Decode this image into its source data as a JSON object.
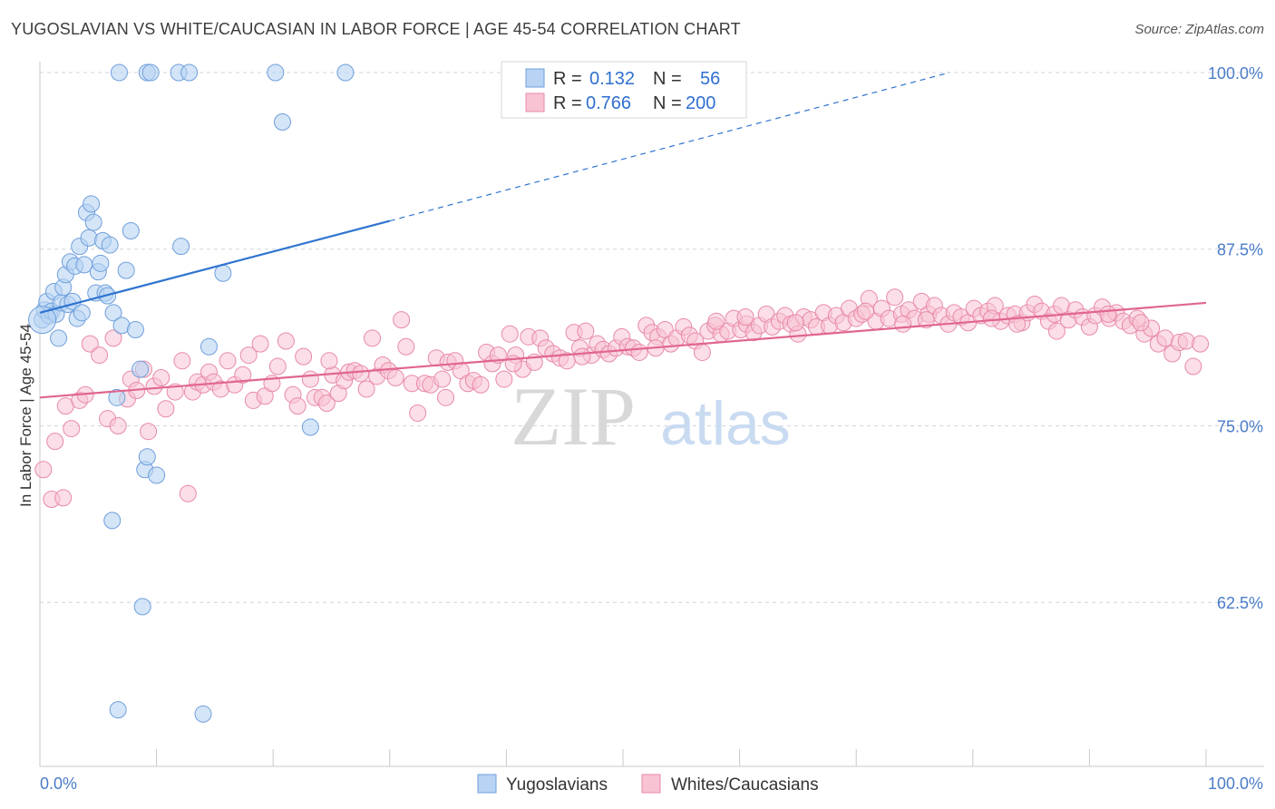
{
  "title": "YUGOSLAVIAN VS WHITE/CAUCASIAN IN LABOR FORCE | AGE 45-54 CORRELATION CHART",
  "source": "Source: ZipAtlas.com",
  "watermark": {
    "zip": "ZIP",
    "atlas": "atlas"
  },
  "colors": {
    "blue_fill": "#b8d3f3",
    "blue_stroke": "#6f9fdc",
    "blue_line": "#2f74d0",
    "pink_fill": "#f8c3d3",
    "pink_stroke": "#e88aa8",
    "pink_line": "#e0668f",
    "tick_label": "#4a7cc9",
    "grid": "#cfd6e0"
  },
  "legend": {
    "rows": [
      {
        "r_label": "R = ",
        "r_value": "0.132",
        "n_label": "N = ",
        "n_value": "56"
      },
      {
        "r_label": "R = ",
        "r_value": "0.766",
        "n_label": "N = ",
        "n_value": "200"
      }
    ]
  },
  "bottom_legend": [
    "Yugoslavians",
    "Whites/Caucasians"
  ],
  "chart_data": {
    "type": "scatter",
    "title": "YUGOSLAVIAN VS WHITE/CAUCASIAN IN LABOR FORCE | AGE 45-54 CORRELATION CHART",
    "xlabel": "",
    "ylabel": "In Labor Force | Age 45-54",
    "xlim": [
      0,
      100
    ],
    "ylim": [
      50,
      101
    ],
    "x_tick_labels": [
      "0.0%",
      "100.0%"
    ],
    "y_ticks": [
      62.5,
      75.0,
      87.5,
      100.0
    ],
    "y_tick_labels": [
      "62.5%",
      "75.0%",
      "87.5%",
      "100.0%"
    ],
    "grid": true,
    "legend_position": "top-center",
    "series": [
      {
        "name": "Yugoslavians",
        "R": 0.132,
        "N": 56,
        "trend": {
          "x0": 0,
          "y0": 83.0,
          "x1": 30,
          "y1": 89.5,
          "dashed_to_x": 78,
          "dashed_to_y": 100.0
        },
        "points": [
          [
            0.2,
            82.5
          ],
          [
            0.4,
            83.2
          ],
          [
            0.6,
            83.8
          ],
          [
            0.8,
            82.8
          ],
          [
            1.0,
            83.1
          ],
          [
            1.2,
            84.5
          ],
          [
            1.4,
            82.9
          ],
          [
            1.6,
            81.2
          ],
          [
            1.8,
            83.7
          ],
          [
            2.0,
            84.8
          ],
          [
            2.2,
            85.7
          ],
          [
            2.4,
            83.6
          ],
          [
            2.6,
            86.6
          ],
          [
            2.8,
            83.8
          ],
          [
            3.0,
            86.3
          ],
          [
            3.2,
            82.6
          ],
          [
            3.4,
            87.7
          ],
          [
            3.6,
            83.0
          ],
          [
            3.8,
            86.4
          ],
          [
            4.0,
            90.1
          ],
          [
            4.2,
            88.3
          ],
          [
            4.4,
            90.7
          ],
          [
            4.6,
            89.4
          ],
          [
            4.8,
            84.4
          ],
          [
            5.0,
            85.9
          ],
          [
            5.2,
            86.5
          ],
          [
            5.4,
            88.1
          ],
          [
            5.6,
            84.4
          ],
          [
            5.8,
            84.2
          ],
          [
            6.0,
            87.8
          ],
          [
            6.3,
            83.0
          ],
          [
            6.6,
            77.0
          ],
          [
            7.0,
            82.1
          ],
          [
            7.4,
            86.0
          ],
          [
            7.8,
            88.8
          ],
          [
            8.2,
            81.8
          ],
          [
            8.6,
            79.0
          ],
          [
            9.0,
            71.9
          ],
          [
            9.2,
            72.8
          ],
          [
            10.0,
            71.5
          ],
          [
            6.2,
            68.3
          ],
          [
            8.8,
            62.2
          ],
          [
            6.7,
            54.9
          ],
          [
            14.0,
            54.6
          ],
          [
            6.8,
            100.0
          ],
          [
            9.2,
            100.0
          ],
          [
            9.5,
            100.0
          ],
          [
            11.9,
            100.0
          ],
          [
            12.8,
            100.0
          ],
          [
            20.2,
            100.0
          ],
          [
            26.2,
            100.0
          ],
          [
            20.8,
            96.5
          ],
          [
            12.1,
            87.7
          ],
          [
            14.5,
            80.6
          ],
          [
            15.7,
            85.8
          ],
          [
            23.2,
            74.9
          ]
        ]
      },
      {
        "name": "Whites/Caucasians",
        "R": 0.766,
        "N": 200,
        "trend": {
          "x0": 0,
          "y0": 77.0,
          "x1": 100,
          "y1": 83.7
        },
        "points": [
          [
            0.3,
            71.9
          ],
          [
            1.0,
            69.8
          ],
          [
            1.3,
            73.9
          ],
          [
            2.0,
            69.9
          ],
          [
            2.2,
            76.4
          ],
          [
            2.7,
            74.8
          ],
          [
            3.4,
            76.8
          ],
          [
            3.9,
            77.2
          ],
          [
            4.3,
            80.8
          ],
          [
            5.1,
            80.0
          ],
          [
            5.8,
            75.5
          ],
          [
            6.3,
            81.2
          ],
          [
            6.7,
            75.0
          ],
          [
            7.5,
            76.9
          ],
          [
            7.8,
            78.3
          ],
          [
            8.3,
            77.5
          ],
          [
            8.9,
            79.0
          ],
          [
            9.3,
            74.6
          ],
          [
            9.8,
            77.8
          ],
          [
            10.4,
            78.4
          ],
          [
            10.8,
            76.2
          ],
          [
            11.6,
            77.4
          ],
          [
            12.2,
            79.6
          ],
          [
            12.7,
            70.2
          ],
          [
            13.1,
            77.4
          ],
          [
            13.5,
            78.1
          ],
          [
            14.0,
            77.9
          ],
          [
            14.5,
            78.8
          ],
          [
            14.9,
            78.1
          ],
          [
            15.5,
            77.6
          ],
          [
            16.1,
            79.6
          ],
          [
            16.7,
            77.9
          ],
          [
            17.4,
            78.6
          ],
          [
            17.9,
            80.0
          ],
          [
            18.3,
            76.8
          ],
          [
            18.9,
            80.8
          ],
          [
            19.3,
            77.1
          ],
          [
            19.9,
            78.0
          ],
          [
            20.4,
            79.2
          ],
          [
            21.1,
            81.0
          ],
          [
            21.7,
            77.2
          ],
          [
            22.1,
            76.4
          ],
          [
            22.6,
            79.9
          ],
          [
            23.2,
            78.3
          ],
          [
            23.6,
            77.0
          ],
          [
            24.2,
            77.0
          ],
          [
            24.6,
            76.6
          ],
          [
            25.1,
            78.6
          ],
          [
            25.6,
            77.3
          ],
          [
            26.1,
            78.2
          ],
          [
            26.5,
            78.8
          ],
          [
            27.0,
            78.9
          ],
          [
            27.5,
            78.7
          ],
          [
            28.0,
            77.6
          ],
          [
            28.5,
            81.2
          ],
          [
            28.9,
            78.5
          ],
          [
            29.4,
            79.3
          ],
          [
            29.9,
            78.9
          ],
          [
            30.5,
            78.4
          ],
          [
            31.0,
            82.5
          ],
          [
            31.4,
            80.6
          ],
          [
            31.9,
            78.0
          ],
          [
            32.4,
            75.9
          ],
          [
            33.0,
            78.0
          ],
          [
            33.5,
            77.9
          ],
          [
            34.0,
            79.8
          ],
          [
            34.5,
            78.3
          ],
          [
            35.0,
            79.5
          ],
          [
            35.6,
            79.6
          ],
          [
            36.1,
            78.9
          ],
          [
            36.7,
            78.0
          ],
          [
            37.2,
            78.2
          ],
          [
            37.8,
            77.9
          ],
          [
            38.3,
            80.2
          ],
          [
            38.8,
            79.4
          ],
          [
            39.3,
            80.0
          ],
          [
            39.8,
            78.3
          ],
          [
            40.3,
            81.5
          ],
          [
            40.8,
            80.0
          ],
          [
            41.4,
            79.0
          ],
          [
            41.9,
            81.3
          ],
          [
            42.4,
            79.5
          ],
          [
            42.9,
            81.2
          ],
          [
            43.4,
            80.5
          ],
          [
            44.0,
            80.1
          ],
          [
            44.6,
            79.8
          ],
          [
            45.2,
            79.6
          ],
          [
            45.8,
            81.6
          ],
          [
            46.3,
            80.5
          ],
          [
            46.8,
            81.7
          ],
          [
            47.3,
            80.0
          ],
          [
            47.8,
            80.8
          ],
          [
            48.3,
            80.4
          ],
          [
            48.8,
            80.1
          ],
          [
            49.4,
            80.5
          ],
          [
            49.9,
            81.3
          ],
          [
            50.4,
            80.6
          ],
          [
            50.9,
            80.5
          ],
          [
            51.4,
            80.2
          ],
          [
            52.0,
            82.1
          ],
          [
            52.5,
            81.6
          ],
          [
            53.0,
            81.3
          ],
          [
            53.6,
            81.8
          ],
          [
            54.1,
            80.8
          ],
          [
            54.6,
            81.2
          ],
          [
            55.2,
            82.0
          ],
          [
            55.7,
            81.4
          ],
          [
            56.2,
            81.0
          ],
          [
            56.8,
            80.2
          ],
          [
            57.3,
            81.7
          ],
          [
            57.9,
            82.1
          ],
          [
            58.4,
            81.5
          ],
          [
            59.0,
            81.7
          ],
          [
            59.5,
            82.6
          ],
          [
            60.1,
            81.8
          ],
          [
            60.6,
            82.2
          ],
          [
            61.2,
            81.6
          ],
          [
            61.7,
            82.1
          ],
          [
            62.3,
            82.9
          ],
          [
            62.8,
            82.0
          ],
          [
            63.4,
            82.4
          ],
          [
            63.9,
            82.8
          ],
          [
            64.4,
            82.2
          ],
          [
            65.0,
            81.5
          ],
          [
            65.5,
            82.7
          ],
          [
            66.1,
            82.5
          ],
          [
            66.6,
            82.0
          ],
          [
            67.2,
            83.0
          ],
          [
            67.7,
            82.1
          ],
          [
            68.3,
            82.8
          ],
          [
            68.9,
            82.3
          ],
          [
            69.4,
            83.3
          ],
          [
            70.0,
            82.6
          ],
          [
            70.5,
            82.9
          ],
          [
            71.1,
            84.0
          ],
          [
            71.7,
            82.4
          ],
          [
            72.2,
            83.3
          ],
          [
            72.8,
            82.6
          ],
          [
            73.3,
            84.1
          ],
          [
            73.9,
            82.9
          ],
          [
            74.5,
            83.2
          ],
          [
            75.0,
            82.6
          ],
          [
            75.6,
            83.8
          ],
          [
            76.2,
            82.9
          ],
          [
            76.7,
            83.5
          ],
          [
            77.3,
            82.8
          ],
          [
            77.9,
            82.2
          ],
          [
            78.4,
            83.0
          ],
          [
            79.0,
            82.7
          ],
          [
            79.6,
            82.3
          ],
          [
            80.1,
            83.3
          ],
          [
            80.7,
            82.8
          ],
          [
            81.3,
            83.1
          ],
          [
            81.9,
            83.5
          ],
          [
            82.4,
            82.4
          ],
          [
            83.0,
            82.8
          ],
          [
            83.6,
            82.9
          ],
          [
            84.2,
            82.3
          ],
          [
            84.7,
            83.0
          ],
          [
            85.3,
            83.6
          ],
          [
            85.9,
            83.1
          ],
          [
            86.5,
            82.4
          ],
          [
            87.0,
            82.9
          ],
          [
            87.6,
            83.5
          ],
          [
            88.2,
            82.5
          ],
          [
            88.8,
            83.2
          ],
          [
            89.4,
            82.7
          ],
          [
            90.0,
            82.0
          ],
          [
            90.5,
            82.8
          ],
          [
            91.1,
            83.4
          ],
          [
            91.7,
            82.6
          ],
          [
            92.3,
            83.0
          ],
          [
            92.9,
            82.4
          ],
          [
            93.5,
            82.1
          ],
          [
            94.1,
            82.6
          ],
          [
            94.7,
            81.5
          ],
          [
            95.3,
            81.9
          ],
          [
            95.9,
            80.8
          ],
          [
            96.5,
            81.2
          ],
          [
            97.1,
            80.1
          ],
          [
            97.7,
            80.9
          ],
          [
            98.3,
            81.0
          ],
          [
            98.9,
            79.2
          ],
          [
            99.5,
            80.8
          ],
          [
            34.8,
            77.0
          ],
          [
            60.5,
            82.7
          ],
          [
            70.8,
            83.1
          ],
          [
            81.6,
            82.6
          ],
          [
            87.2,
            81.7
          ],
          [
            74.0,
            82.2
          ],
          [
            52.8,
            80.5
          ],
          [
            46.5,
            79.9
          ],
          [
            64.8,
            82.3
          ],
          [
            58.0,
            82.4
          ],
          [
            76.0,
            82.5
          ],
          [
            83.8,
            82.2
          ],
          [
            91.6,
            82.9
          ],
          [
            40.6,
            79.4
          ],
          [
            24.8,
            79.6
          ],
          [
            94.4,
            82.3
          ]
        ]
      }
    ]
  }
}
